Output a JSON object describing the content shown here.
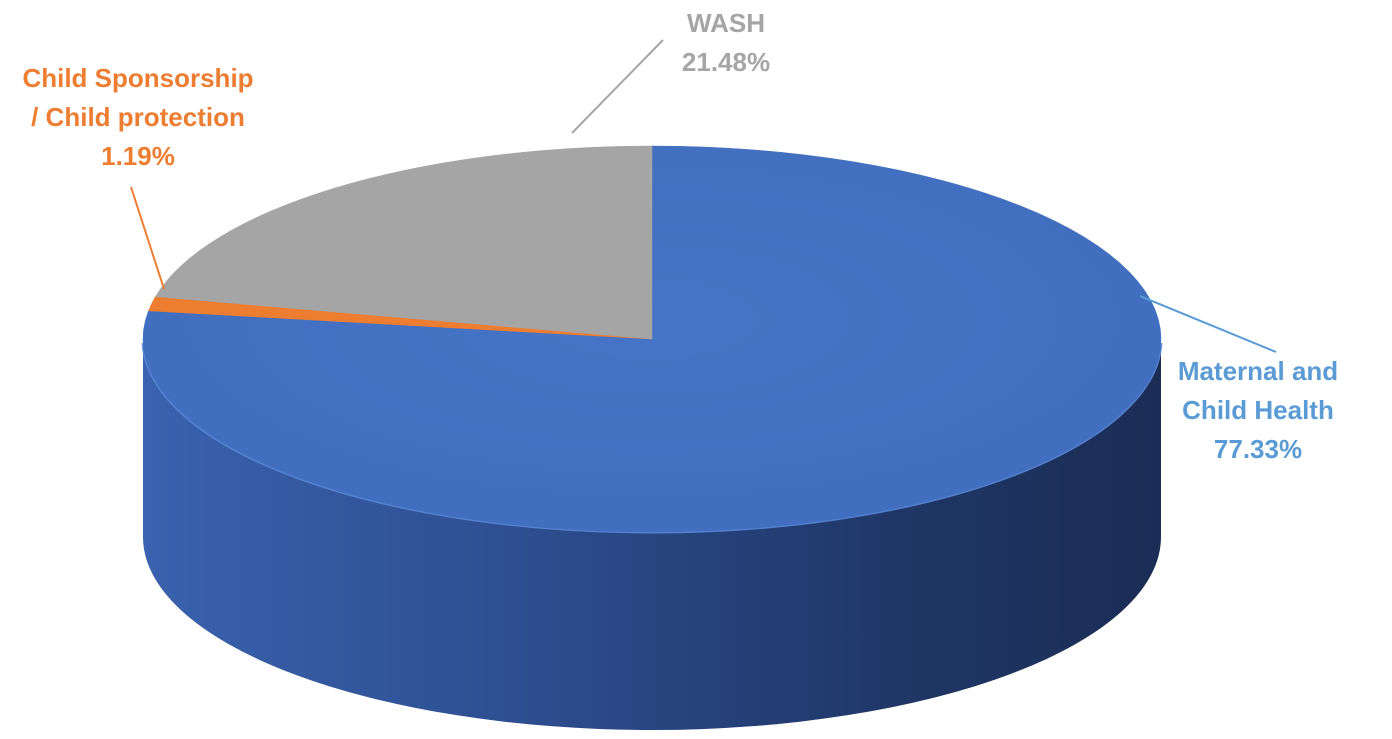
{
  "chart_data": {
    "type": "pie",
    "title": "",
    "legend": "none",
    "slices": [
      {
        "lines": [
          "Maternal and",
          "Child Health"
        ],
        "value": 77.33,
        "value_label": "77.33%",
        "color": "#4472C4",
        "side_dark": "#1E3160",
        "side_light": "#3F66B2"
      },
      {
        "lines": [
          "Child Sponsorship",
          "/ Child protection"
        ],
        "value": 1.19,
        "value_label": "1.19%",
        "color": "#ED7D31",
        "side_dark": "#8A4416",
        "side_light": "#D8702A"
      },
      {
        "lines": [
          "WASH"
        ],
        "value": 21.48,
        "value_label": "21.48%",
        "color": "#A5A5A5",
        "side_dark": "#5C5C5C",
        "side_light": "#999999"
      }
    ],
    "label_colors": [
      "#5B9BD5",
      "#ED7D31",
      "#A5A5A5"
    ]
  }
}
